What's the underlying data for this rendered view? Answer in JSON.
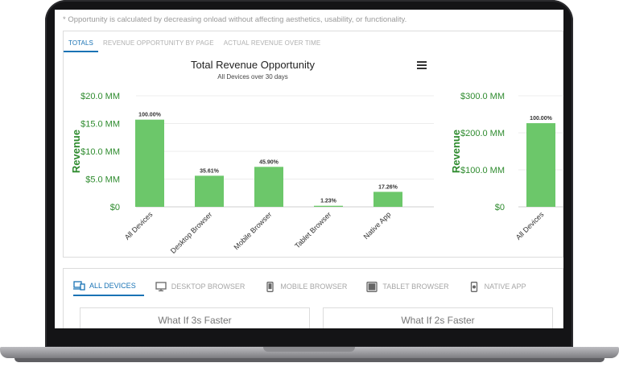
{
  "note": "* Opportunity is calculated by decreasing onload without affecting aesthetics, usability, or functionality.",
  "tabs": [
    {
      "label": "TOTALS"
    },
    {
      "label": "REVENUE OPPORTUNITY BY PAGE"
    },
    {
      "label": "ACTUAL REVENUE OVER TIME"
    }
  ],
  "chart_data": [
    {
      "type": "bar",
      "title": "Total Revenue Opportunity",
      "subtitle": "All Devices over 30 days",
      "ylabel": "Revenue",
      "ylim": [
        0,
        20
      ],
      "yticks": [
        "$0",
        "$5.0 MM",
        "$10.0 MM",
        "$15.0 MM",
        "$20.0 MM"
      ],
      "categories": [
        "All Devices",
        "Desktop Browser",
        "Mobile Browser",
        "Tablet Browser",
        "Native App"
      ],
      "values": [
        15.7,
        5.6,
        7.2,
        0.19,
        2.7
      ],
      "data_labels": [
        "100.00%",
        "35.61%",
        "45.90%",
        "1.23%",
        "17.26%"
      ],
      "color": "#6cc76a"
    },
    {
      "type": "bar",
      "ylabel": "Revenue",
      "ylim": [
        0,
        300
      ],
      "yticks": [
        "$0",
        "$100.0 MM",
        "$200.0 MM",
        "$300.0 MM"
      ],
      "categories": [
        "All Devices"
      ],
      "values": [
        226
      ],
      "data_labels": [
        "100.00%"
      ],
      "color": "#6cc76a"
    }
  ],
  "device_tabs": [
    {
      "label": "ALL DEVICES",
      "icon": "devices-icon"
    },
    {
      "label": "DESKTOP BROWSER",
      "icon": "desktop-icon"
    },
    {
      "label": "MOBILE BROWSER",
      "icon": "mobile-icon"
    },
    {
      "label": "TABLET BROWSER",
      "icon": "tablet-icon"
    },
    {
      "label": "NATIVE APP",
      "icon": "native-app-icon"
    }
  ],
  "what_if": [
    {
      "label": "What If 3s Faster"
    },
    {
      "label": "What If 2s Faster"
    }
  ]
}
